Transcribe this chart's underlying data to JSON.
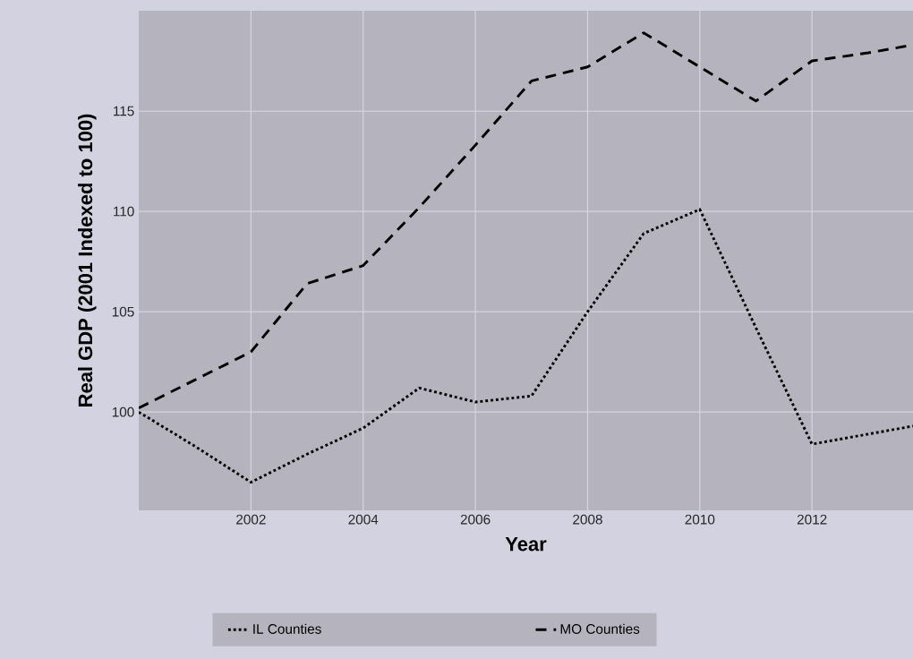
{
  "chart_data": {
    "type": "line",
    "xlabel": "Year",
    "ylabel": "Real GDP (2001 Indexed to 100)",
    "x": [
      2000,
      2001,
      2002,
      2003,
      2004,
      2005,
      2006,
      2007,
      2008,
      2009,
      2010,
      2011,
      2012,
      2013,
      2013.8
    ],
    "series": [
      {
        "name": "IL Counties",
        "color": "#000000",
        "line_style": "dotted",
        "values": [
          100,
          98.3,
          96.5,
          97.9,
          99.2,
          101.2,
          100.5,
          100.8,
          105,
          108.9,
          110.1,
          104.2,
          98.4,
          98.9,
          99.3
        ]
      },
      {
        "name": "MO Counties",
        "color": "#000000",
        "line_style": "dashed",
        "values": [
          100.2,
          101.6,
          103,
          106.4,
          107.3,
          110.2,
          113.3,
          116.5,
          117.2,
          118.9,
          117.2,
          115.5,
          117.5,
          117.9,
          118.3
        ]
      }
    ],
    "xlim": [
      2000,
      2013.8
    ],
    "ylim": [
      95.1,
      120
    ],
    "xticks": [
      2002,
      2004,
      2006,
      2008,
      2010,
      2012
    ],
    "yticks": [
      100,
      105,
      110,
      115
    ],
    "grid": true,
    "legend": "bottom",
    "marker": "none"
  }
}
